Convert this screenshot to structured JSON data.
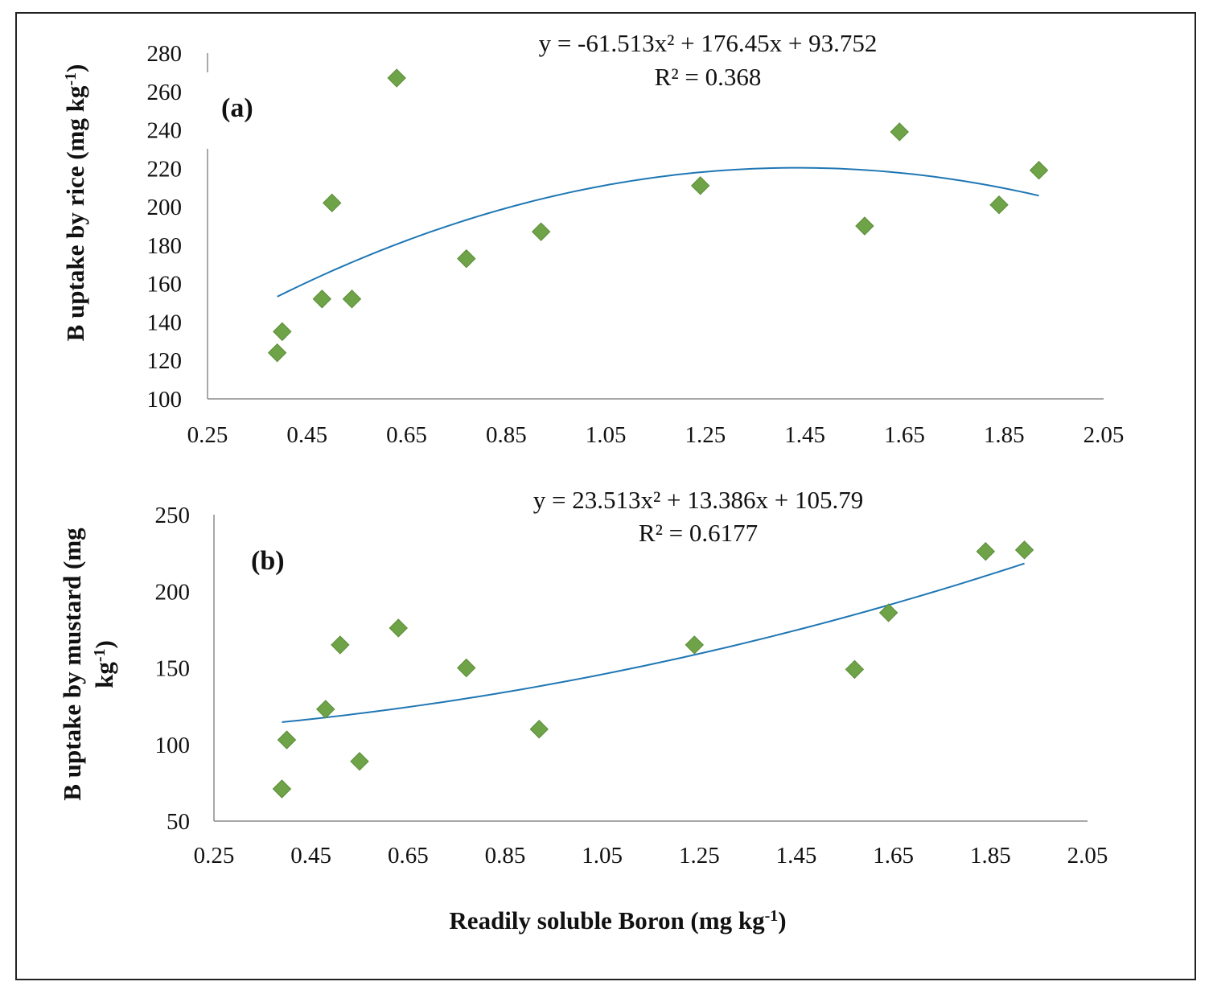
{
  "figure": {
    "xlabel": "Readily  soluble Boron (mg kg",
    "xlabel_sup": "-1",
    "xlabel_end": ")"
  },
  "colors": {
    "marker": "#6fa347",
    "trend": "#1f77b4",
    "axis": "#8c8c8c",
    "frame": "#222222"
  },
  "chart_data": [
    {
      "type": "scatter",
      "panel_label": "(a)",
      "equation": "y = -61.513x² + 176.45x + 93.752",
      "r2": "R² = 0.368",
      "ylabel": "B uptake by rice (mg kg",
      "ylabel_sup": "-1",
      "ylabel_end": ")",
      "xlim": [
        0.25,
        2.05
      ],
      "ylim": [
        100,
        280
      ],
      "xticks": [
        "0.25",
        "0.45",
        "0.65",
        "0.85",
        "1.05",
        "1.25",
        "1.45",
        "1.65",
        "1.85",
        "2.05"
      ],
      "yticks": [
        "100",
        "120",
        "140",
        "160",
        "180",
        "200",
        "220",
        "240",
        "260",
        "280"
      ],
      "x": [
        0.39,
        0.4,
        0.48,
        0.5,
        0.54,
        0.63,
        0.77,
        0.92,
        1.24,
        1.57,
        1.64,
        1.84,
        1.92
      ],
      "y": [
        124,
        135,
        152,
        202,
        152,
        267,
        173,
        187,
        211,
        190,
        239,
        201,
        219
      ],
      "trend": {
        "a": -61.513,
        "b": 176.45,
        "c": 93.752,
        "x_from": 0.39,
        "x_to": 1.92
      }
    },
    {
      "type": "scatter",
      "panel_label": "(b)",
      "equation": "y = 23.513x² + 13.386x + 105.79",
      "r2": "R² = 0.6177",
      "ylabel": "B uptake by mustard (mg",
      "ylabel2": "kg",
      "ylabel2_sup": "-1",
      "ylabel2_end": ")",
      "xlim": [
        0.25,
        2.05
      ],
      "ylim": [
        50,
        250
      ],
      "xticks": [
        "0.25",
        "0.45",
        "0.65",
        "0.85",
        "1.05",
        "1.25",
        "1.45",
        "1.65",
        "1.85",
        "2.05"
      ],
      "yticks": [
        "50",
        "100",
        "150",
        "200",
        "250"
      ],
      "x": [
        0.39,
        0.4,
        0.48,
        0.51,
        0.55,
        0.63,
        0.77,
        0.92,
        1.24,
        1.57,
        1.64,
        1.84,
        1.92
      ],
      "y": [
        71,
        103,
        123,
        165,
        89,
        176,
        150,
        110,
        165,
        149,
        186,
        226,
        227
      ],
      "trend": {
        "a": 23.513,
        "b": 13.386,
        "c": 105.79,
        "x_from": 0.39,
        "x_to": 1.92
      }
    }
  ]
}
